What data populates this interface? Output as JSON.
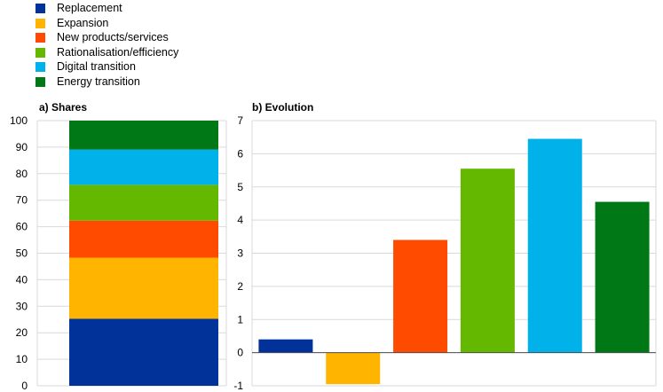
{
  "legend": {
    "items": [
      {
        "label": "Replacement",
        "color": "#003299"
      },
      {
        "label": "Expansion",
        "color": "#FFB400"
      },
      {
        "label": "New products/services",
        "color": "#FF4B00"
      },
      {
        "label": "Rationalisation/efficiency",
        "color": "#65B800"
      },
      {
        "label": "Digital transition",
        "color": "#00B1EA"
      },
      {
        "label": "Energy transition",
        "color": "#007816"
      }
    ]
  },
  "chart_data": [
    {
      "type": "bar",
      "stacked": true,
      "title": "a) Shares",
      "categories": [
        ""
      ],
      "series": [
        {
          "name": "Replacement",
          "values": [
            25.3
          ]
        },
        {
          "name": "Expansion",
          "values": [
            23.0
          ]
        },
        {
          "name": "New products/services",
          "values": [
            14.0
          ]
        },
        {
          "name": "Rationalisation/efficiency",
          "values": [
            13.5
          ]
        },
        {
          "name": "Digital transition",
          "values": [
            13.3
          ]
        },
        {
          "name": "Energy transition",
          "values": [
            10.9
          ]
        }
      ],
      "ylim": [
        0,
        100
      ],
      "yticks": [
        "0",
        "10",
        "20",
        "30",
        "40",
        "50",
        "60",
        "70",
        "80",
        "90",
        "100"
      ],
      "grid": true
    },
    {
      "type": "bar",
      "title": "b) Evolution",
      "categories": [
        "Replacement",
        "Expansion",
        "New products/services",
        "Rationalisation/efficiency",
        "Digital transition",
        "Energy transition"
      ],
      "values": [
        0.4,
        -0.95,
        3.4,
        5.55,
        6.45,
        4.55
      ],
      "ylim": [
        -1,
        7
      ],
      "yticks": [
        "-1",
        "0",
        "1",
        "2",
        "3",
        "4",
        "5",
        "6",
        "7"
      ],
      "grid": true
    }
  ]
}
